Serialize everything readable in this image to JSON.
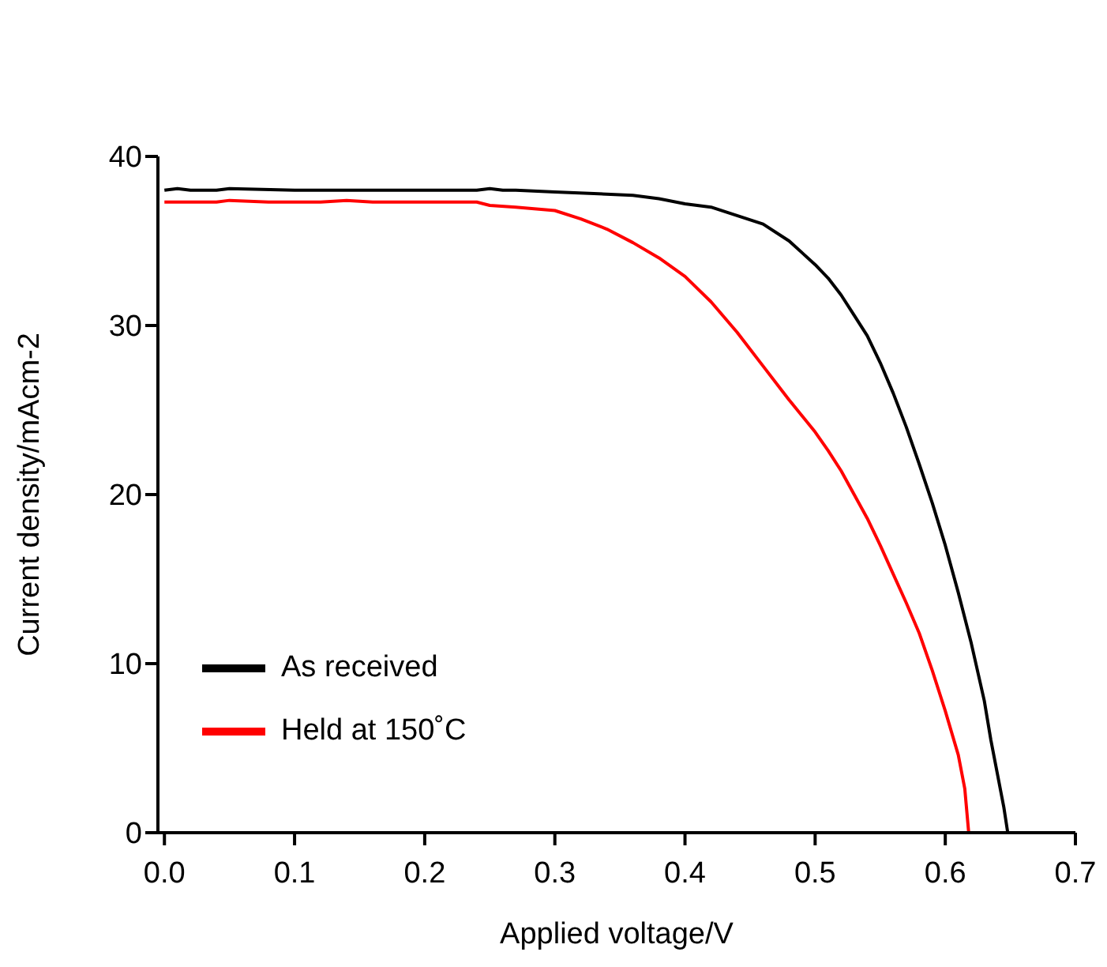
{
  "chart_data": {
    "type": "line",
    "xlabel": "Applied voltage/V",
    "ylabel": "Current density/mAcm-2",
    "xlim": [
      -0.005,
      0.7
    ],
    "ylim": [
      0,
      40
    ],
    "xticks": [
      {
        "value": 0,
        "label": "0.0"
      },
      0.1,
      0.2,
      0.3,
      0.4,
      0.5,
      0.6,
      0.7
    ],
    "yticks": [
      0,
      10,
      20,
      30,
      40
    ],
    "legend": "bottom left",
    "line_style": "solid",
    "marker": "none",
    "grid": false,
    "series": [
      {
        "name": "As received",
        "color": "#000000",
        "x": [
          0,
          0.01,
          0.02,
          0.04,
          0.05,
          0.1,
          0.2,
          0.24,
          0.25,
          0.26,
          0.27,
          0.3,
          0.33,
          0.36,
          0.38,
          0.4,
          0.42,
          0.44,
          0.46,
          0.48,
          0.5,
          0.51,
          0.52,
          0.53,
          0.54,
          0.55,
          0.56,
          0.57,
          0.58,
          0.59,
          0.6,
          0.61,
          0.62,
          0.63,
          0.635,
          0.64,
          0.645,
          0.648
        ],
        "values": [
          38.0,
          38.1,
          38.0,
          38.0,
          38.1,
          38.0,
          38.0,
          38.0,
          38.1,
          38.0,
          38.0,
          37.9,
          37.8,
          37.7,
          37.5,
          37.2,
          37.0,
          36.5,
          36.0,
          35.0,
          33.6,
          32.8,
          31.8,
          30.6,
          29.4,
          27.8,
          26.0,
          24.0,
          21.8,
          19.5,
          17.0,
          14.2,
          11.2,
          7.8,
          5.5,
          3.5,
          1.5,
          0
        ]
      },
      {
        "name": "Held at 150˚C",
        "color": "#ff0000",
        "x": [
          0,
          0.04,
          0.05,
          0.08,
          0.12,
          0.14,
          0.16,
          0.2,
          0.24,
          0.25,
          0.27,
          0.3,
          0.32,
          0.34,
          0.36,
          0.38,
          0.4,
          0.42,
          0.44,
          0.46,
          0.48,
          0.5,
          0.51,
          0.52,
          0.53,
          0.54,
          0.55,
          0.56,
          0.57,
          0.58,
          0.59,
          0.6,
          0.61,
          0.615,
          0.618
        ],
        "values": [
          37.3,
          37.3,
          37.4,
          37.3,
          37.3,
          37.4,
          37.3,
          37.3,
          37.3,
          37.1,
          37.0,
          36.8,
          36.3,
          35.7,
          34.9,
          34.0,
          32.9,
          31.4,
          29.6,
          27.6,
          25.6,
          23.7,
          22.6,
          21.4,
          20.0,
          18.6,
          17.0,
          15.3,
          13.6,
          11.8,
          9.6,
          7.2,
          4.6,
          2.6,
          0
        ]
      }
    ]
  }
}
